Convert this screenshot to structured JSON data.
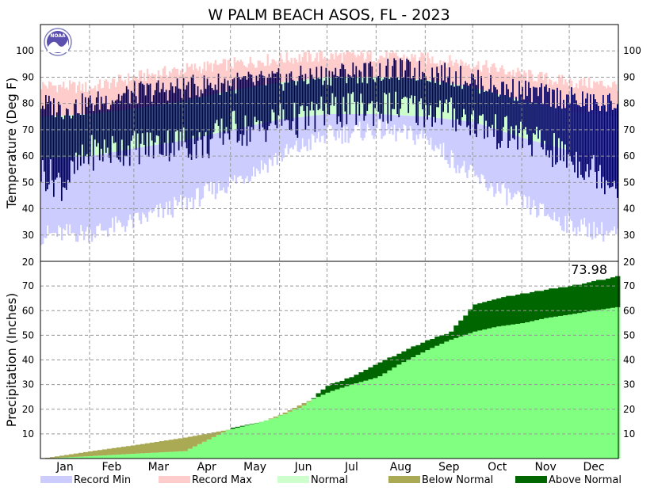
{
  "chart_data": [
    {
      "type": "bar",
      "title": "W PALM BEACH ASOS, FL - 2023",
      "ylabel": "Temperature (Deg F)",
      "ylim": [
        20,
        110
      ],
      "yticks": [
        30,
        40,
        50,
        60,
        70,
        80,
        90,
        100
      ],
      "grid": true,
      "x_months": [
        "Jan",
        "Feb",
        "Mar",
        "Apr",
        "May",
        "Jun",
        "Jul",
        "Aug",
        "Sep",
        "Oct",
        "Nov",
        "Dec"
      ],
      "series": [
        {
          "name": "Record Min",
          "role": "record_min",
          "color": "#ccccff",
          "x": [
            "Jan 1",
            "Feb 1",
            "Mar 1",
            "Apr 1",
            "May 1",
            "Jun 1",
            "Jul 1",
            "Aug 1",
            "Sep 1",
            "Oct 1",
            "Nov 1",
            "Dec 1",
            "Dec 31"
          ],
          "values": [
            30,
            31,
            35,
            42,
            50,
            60,
            68,
            70,
            67,
            52,
            42,
            34,
            30
          ]
        },
        {
          "name": "Record Max",
          "role": "record_max",
          "color": "#ffcccc",
          "x": [
            "Jan 1",
            "Feb 1",
            "Mar 1",
            "Apr 1",
            "May 1",
            "Jun 1",
            "Jul 1",
            "Aug 1",
            "Sep 1",
            "Oct 1",
            "Nov 1",
            "Dec 1",
            "Dec 31"
          ],
          "values": [
            87,
            86,
            90,
            93,
            95,
            97,
            98,
            98,
            97,
            95,
            91,
            88,
            87
          ]
        },
        {
          "name": "Normal",
          "role": "normal_band",
          "color": "#ccffcc",
          "x": [
            "Jan 1",
            "Feb 1",
            "Mar 1",
            "Apr 1",
            "May 1",
            "Jun 1",
            "Jul 1",
            "Aug 1",
            "Sep 1",
            "Oct 1",
            "Nov 1",
            "Dec 1",
            "Dec 31"
          ],
          "low": [
            59,
            60,
            63,
            66,
            70,
            74,
            76,
            76,
            75,
            73,
            67,
            62,
            59
          ],
          "high": [
            75,
            76,
            78,
            81,
            85,
            88,
            90,
            90,
            89,
            86,
            81,
            77,
            75
          ]
        },
        {
          "name": "",
          "role": "observed",
          "color": "#000066",
          "x": [
            "Jan 1",
            "Jan 15",
            "Feb 1",
            "Feb 15",
            "Mar 1",
            "Mar 15",
            "Apr 1",
            "Apr 15",
            "May 1",
            "May 15",
            "Jun 1",
            "Jun 15",
            "Jul 1",
            "Jul 15",
            "Aug 1",
            "Aug 15",
            "Sep 1",
            "Sep 15",
            "Oct 1",
            "Oct 15",
            "Nov 1",
            "Nov 15",
            "Dec 1",
            "Dec 15",
            "Dec 31"
          ],
          "low": [
            55,
            50,
            62,
            63,
            64,
            65,
            66,
            65,
            72,
            70,
            75,
            74,
            78,
            78,
            79,
            79,
            78,
            77,
            74,
            70,
            68,
            64,
            60,
            56,
            50
          ],
          "high": [
            80,
            78,
            80,
            82,
            84,
            85,
            86,
            87,
            88,
            88,
            89,
            90,
            91,
            92,
            92,
            93,
            92,
            91,
            89,
            86,
            85,
            83,
            82,
            80,
            80
          ]
        }
      ]
    },
    {
      "type": "area",
      "ylabel": "Precipitation (Inches)",
      "ylim": [
        0,
        80
      ],
      "yticks": [
        10,
        20,
        30,
        40,
        50,
        60,
        70
      ],
      "grid": true,
      "annotation": "73.98",
      "x_months": [
        "Jan",
        "Feb",
        "Mar",
        "Apr",
        "May",
        "Jun",
        "Jul",
        "Aug",
        "Sep",
        "Oct",
        "Nov",
        "Dec"
      ],
      "x": [
        "Jan 1",
        "Feb 1",
        "Mar 1",
        "Apr 1",
        "May 1",
        "May 20",
        "Jun 1",
        "Jun 15",
        "Jul 1",
        "Jul 15",
        "Aug 1",
        "Aug 15",
        "Sep 1",
        "Sep 15",
        "Oct 1",
        "Oct 15",
        "Nov 1",
        "Nov 15",
        "Dec 1",
        "Dec 15",
        "Dec 31"
      ],
      "series": [
        {
          "name": "Normal",
          "role": "normal_cumulative",
          "color": "#80ff80",
          "values": [
            0,
            3,
            5.5,
            8.5,
            12,
            15,
            18,
            22.5,
            27,
            30,
            33,
            38.5,
            44,
            48,
            51.5,
            53.5,
            55,
            57,
            58.5,
            60,
            61.5
          ]
        },
        {
          "name": "",
          "role": "observed_cumulative",
          "values": [
            0,
            1,
            2,
            3,
            12.5,
            15,
            17.5,
            21.5,
            30,
            33,
            38.5,
            43,
            48,
            51,
            62.5,
            65,
            67,
            68.5,
            70,
            72,
            73.98
          ]
        }
      ]
    }
  ],
  "legend": [
    {
      "label": "Record Min",
      "color": "#ccccff"
    },
    {
      "label": "Record Max",
      "color": "#ffcccc"
    },
    {
      "label": "Normal",
      "color": "#ccffcc"
    },
    {
      "label": "Below Normal",
      "color": "#aaaa55"
    },
    {
      "label": "Above Normal",
      "color": "#006600"
    }
  ],
  "colors": {
    "below_normal": "#aaaa55",
    "above_normal": "#006600",
    "normal_precip": "#80ff80",
    "observed_temp": "#000066",
    "grid": "#999999",
    "noaa_logo": "#5b4fb0"
  },
  "logo": {
    "text": "NOAA",
    "icon": "noaa-logo-icon"
  }
}
